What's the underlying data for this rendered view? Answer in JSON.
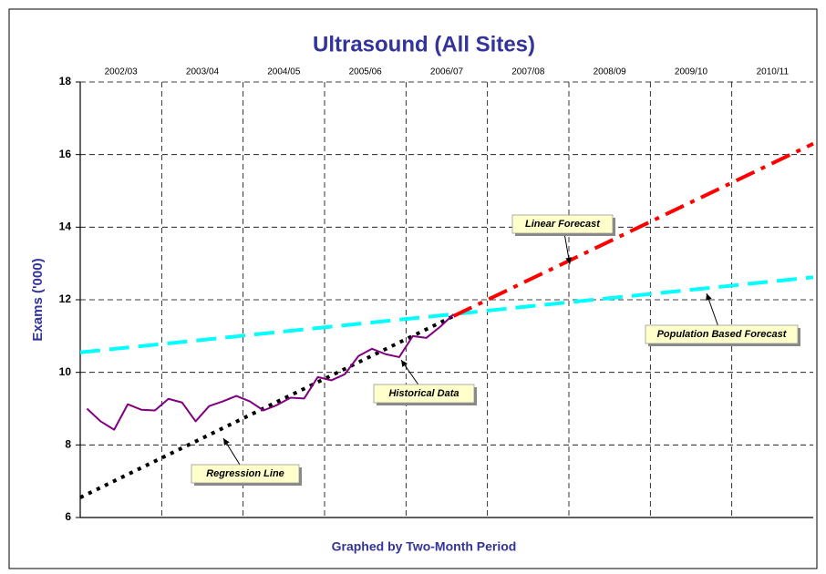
{
  "chart_data": {
    "type": "line",
    "title": "Ultrasound (All Sites)",
    "x_label": "Graphed by Two-Month Period",
    "y_label": "Exams ('000)",
    "xlim": [
      0,
      54
    ],
    "ylim": [
      6,
      18
    ],
    "yticks": [
      6,
      8,
      10,
      12,
      14,
      16,
      18
    ],
    "xticks": [
      {
        "value": 3,
        "label": "2002/03"
      },
      {
        "value": 9,
        "label": "2003/04"
      },
      {
        "value": 15,
        "label": "2004/05"
      },
      {
        "value": 21,
        "label": "2005/06"
      },
      {
        "value": 27,
        "label": "2006/07"
      },
      {
        "value": 33,
        "label": "2007/08"
      },
      {
        "value": 39,
        "label": "2008/09"
      },
      {
        "value": 45,
        "label": "2009/10"
      },
      {
        "value": 51,
        "label": "2010/11"
      }
    ],
    "xgrid": [
      6,
      12,
      18,
      24,
      30,
      36,
      42,
      48
    ],
    "grid": true,
    "series": [
      {
        "name": "Historical Data",
        "color": "#800080",
        "dash": "solid",
        "x": [
          0.5,
          1.5,
          2.5,
          3.5,
          4.5,
          5.5,
          6.5,
          7.5,
          8.5,
          9.5,
          10.5,
          11.5,
          12.5,
          13.5,
          14.5,
          15.5,
          16.5,
          17.5,
          18.5,
          19.5,
          20.5,
          21.5,
          22.5,
          23.5,
          24.5,
          25.5,
          26.5,
          27.5
        ],
        "values": [
          9.0,
          8.65,
          8.42,
          9.12,
          8.97,
          8.95,
          9.27,
          9.17,
          8.65,
          9.07,
          9.2,
          9.35,
          9.2,
          8.95,
          9.1,
          9.3,
          9.28,
          9.87,
          9.78,
          9.95,
          10.45,
          10.65,
          10.5,
          10.42,
          11.0,
          10.95,
          11.25,
          11.6
        ]
      },
      {
        "name": "Regression Line",
        "color": "#000000",
        "dash": "dot",
        "x": [
          0,
          27.5
        ],
        "values": [
          6.55,
          11.55
        ]
      },
      {
        "name": "Linear Forecast",
        "color": "#ff0000",
        "dash": "dashdot",
        "x": [
          27.5,
          54
        ],
        "values": [
          11.55,
          16.3
        ]
      },
      {
        "name": "Population Based Forecast",
        "color": "#00ffff",
        "dash": "dash",
        "x": [
          0,
          54
        ],
        "values": [
          10.55,
          12.62
        ]
      }
    ]
  }
}
